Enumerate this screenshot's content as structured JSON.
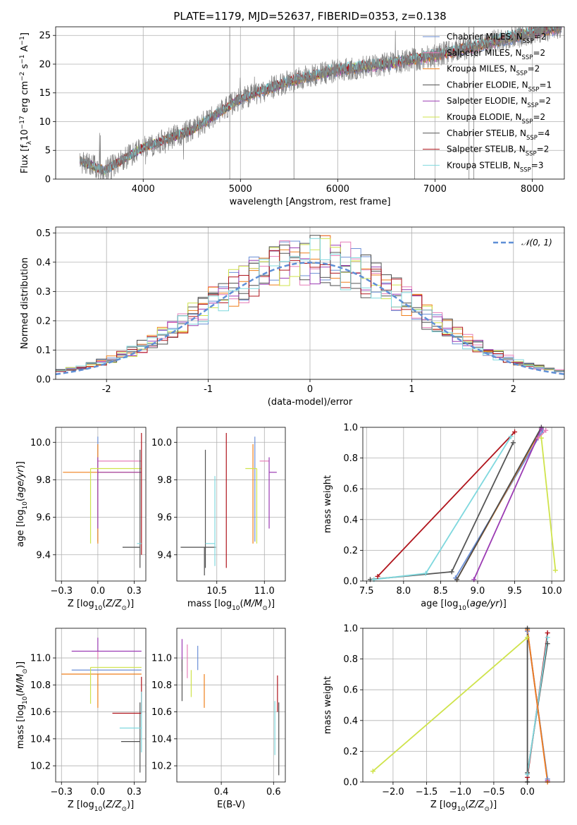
{
  "colors": {
    "Chabrier MILES": "#6b8fd6",
    "Salpeter MILES": "#e67fb8",
    "Kroupa MILES": "#ef7f1a",
    "Chabrier ELODIE": "#4d4d4d",
    "Salpeter ELODIE": "#9b3bb3",
    "Kroupa ELODIE": "#cfe34b",
    "Chabrier STELIB": "#555555",
    "Salpeter STELIB": "#b0141c",
    "Kroupa STELIB": "#7fd8de",
    "data": "#808080",
    "normal": "#5f8fd6"
  },
  "chart_data": [
    {
      "id": "spectrum",
      "type": "line",
      "title": "PLATE=1179, MJD=52637, FIBERID=0353, z=0.138",
      "xlabel": "wavelength [Angstrom, rest frame]",
      "ylabel": "Flux [f_λ10^-17 erg cm^-2 s^-1 A^-1]",
      "xlim": [
        3100,
        8330
      ],
      "ylim": [
        0,
        26.5
      ],
      "xticks": [
        4000,
        5000,
        6000,
        7000,
        8000
      ],
      "yticks": [
        0,
        5,
        10,
        15,
        20,
        25
      ],
      "data_range": [
        3350,
        8300
      ],
      "trend": {
        "x": [
          3350,
          3600,
          4000,
          4500,
          5000,
          5500,
          6000,
          6500,
          7000,
          7500,
          8000,
          8300
        ],
        "y": [
          3.2,
          1.5,
          5.5,
          8.5,
          14.0,
          17.0,
          19.0,
          20.0,
          21.5,
          23.5,
          25.5,
          26.5
        ]
      },
      "legend": [
        {
          "base": "Chabrier MILES",
          "n": "2"
        },
        {
          "base": "Salpeter MILES",
          "n": "2"
        },
        {
          "base": "Kroupa MILES",
          "n": "2"
        },
        {
          "base": "Chabrier ELODIE",
          "n": "1"
        },
        {
          "base": "Salpeter ELODIE",
          "n": "2"
        },
        {
          "base": "Kroupa ELODIE",
          "n": "2"
        },
        {
          "base": "Chabrier STELIB",
          "n": "4"
        },
        {
          "base": "Salpeter STELIB",
          "n": "2"
        },
        {
          "base": "Kroupa STELIB",
          "n": "3"
        }
      ]
    },
    {
      "id": "residuals",
      "type": "step",
      "xlabel": "(data-model)/error",
      "ylabel": "Normed distribution",
      "xlim": [
        -2.5,
        2.5
      ],
      "ylim": [
        0,
        0.52
      ],
      "xticks": [
        -2,
        -1,
        0,
        1,
        2
      ],
      "yticks": [
        0.0,
        0.1,
        0.2,
        0.3,
        0.4,
        0.5
      ],
      "legend": "𝒩(0, 1)",
      "grid": true
    },
    {
      "id": "age-vs-Z",
      "type": "errorbar",
      "xlabel": "Z [log10(Z/Z⊙)]",
      "ylabel": "age  [log10(age/yr)]",
      "xlim": [
        -0.29,
        0.33
      ],
      "ylim": [
        9.26,
        10.08
      ],
      "xticks": [
        -0.25,
        0.0,
        0.25
      ],
      "yticks": [
        9.4,
        9.6,
        9.8,
        10.0
      ],
      "points": [
        {
          "model": "Chabrier MILES",
          "x": 0.0,
          "y": 9.85,
          "xerr": [
            0.0,
            0.0
          ],
          "yerr": [
            0.38,
            0.18
          ]
        },
        {
          "model": "Salpeter MILES",
          "x": 0.05,
          "y": 9.9,
          "xerr": [
            0.05,
            0.25
          ],
          "yerr": [
            0.0,
            0.0
          ]
        },
        {
          "model": "Kroupa MILES",
          "x": 0.0,
          "y": 9.84,
          "xerr": [
            0.24,
            0.3
          ],
          "yerr": [
            0.38,
            0.15
          ]
        },
        {
          "model": "Chabrier ELODIE",
          "x": 0.29,
          "y": 9.44,
          "xerr": [
            0.12,
            0.0
          ],
          "yerr": [
            0.0,
            0.0
          ]
        },
        {
          "model": "Salpeter ELODIE",
          "x": 0.0,
          "y": 9.84,
          "xerr": [
            0.0,
            0.3
          ],
          "yerr": [
            0.3,
            0.08
          ]
        },
        {
          "model": "Kroupa ELODIE",
          "x": -0.05,
          "y": 9.86,
          "xerr": [
            0.0,
            0.35
          ],
          "yerr": [
            0.4,
            0.0
          ]
        },
        {
          "model": "Chabrier STELIB",
          "x": 0.29,
          "y": 9.7,
          "xerr": [
            0.0,
            0.0
          ],
          "yerr": [
            0.37,
            0.26
          ]
        },
        {
          "model": "Salpeter STELIB",
          "x": 0.3,
          "y": 9.7,
          "xerr": [
            0.0,
            0.0
          ],
          "yerr": [
            0.3,
            0.35
          ]
        },
        {
          "model": "Kroupa STELIB",
          "x": 0.27,
          "y": 9.46,
          "xerr": [
            0.0,
            0.03
          ],
          "yerr": [
            0.0,
            0.0
          ]
        }
      ]
    },
    {
      "id": "age-vs-mass",
      "type": "errorbar",
      "xlabel": "mass [log10(M/M⊙)]",
      "ylabel": "",
      "xlim": [
        10.08,
        11.22
      ],
      "ylim": [
        9.26,
        10.08
      ],
      "xticks": [
        10.5,
        11.0
      ],
      "yticks": [
        9.4,
        9.6,
        9.8,
        10.0
      ],
      "points": [
        {
          "model": "Chabrier MILES",
          "x": 10.9,
          "y": 9.85,
          "xerr": [
            0.0,
            0.0
          ],
          "yerr": [
            0.38,
            0.18
          ]
        },
        {
          "model": "Salpeter MILES",
          "x": 11.05,
          "y": 9.9,
          "xerr": [
            0.1,
            0.0
          ],
          "yerr": [
            0.0,
            0.0
          ]
        },
        {
          "model": "Kroupa MILES",
          "x": 10.88,
          "y": 9.84,
          "xerr": [
            0.0,
            0.0
          ],
          "yerr": [
            0.38,
            0.15
          ]
        },
        {
          "model": "Chabrier ELODIE",
          "x": 10.37,
          "y": 9.44,
          "xerr": [
            0.25,
            0.12
          ],
          "yerr": [
            0.15,
            0.0
          ]
        },
        {
          "model": "Salpeter ELODIE",
          "x": 11.05,
          "y": 9.84,
          "xerr": [
            0.0,
            0.08
          ],
          "yerr": [
            0.3,
            0.08
          ]
        },
        {
          "model": "Kroupa ELODIE",
          "x": 10.92,
          "y": 9.86,
          "xerr": [
            0.12,
            0.0
          ],
          "yerr": [
            0.4,
            0.0
          ]
        },
        {
          "model": "Chabrier STELIB",
          "x": 10.38,
          "y": 9.7,
          "xerr": [
            0.0,
            0.0
          ],
          "yerr": [
            0.37,
            0.26
          ]
        },
        {
          "model": "Salpeter STELIB",
          "x": 10.6,
          "y": 9.7,
          "xerr": [
            0.0,
            0.0
          ],
          "yerr": [
            0.37,
            0.35
          ]
        },
        {
          "model": "Kroupa STELIB",
          "x": 10.48,
          "y": 9.46,
          "xerr": [
            0.1,
            0.0
          ],
          "yerr": [
            0.12,
            0.36
          ]
        }
      ]
    },
    {
      "id": "weight-vs-age",
      "type": "line",
      "xlabel": "age  [log10(age/yr)]",
      "ylabel": "mass weight",
      "xlim": [
        7.45,
        10.17
      ],
      "ylim": [
        0,
        1
      ],
      "xticks": [
        7.5,
        8.0,
        8.5,
        9.0,
        9.5,
        10.0
      ],
      "yticks": [
        0.0,
        0.2,
        0.4,
        0.6,
        0.8,
        1.0
      ],
      "series": [
        {
          "model": "Salpeter STELIB",
          "x": [
            7.65,
            9.5
          ],
          "y": [
            0.03,
            0.97
          ]
        },
        {
          "model": "Chabrier STELIB",
          "x": [
            7.55,
            8.65,
            9.48
          ],
          "y": [
            0.01,
            0.06,
            0.9
          ]
        },
        {
          "model": "Kroupa STELIB",
          "x": [
            7.6,
            8.3,
            9.45
          ],
          "y": [
            0.01,
            0.05,
            0.94
          ]
        },
        {
          "model": "Chabrier MILES",
          "x": [
            8.7,
            9.88
          ],
          "y": [
            0.02,
            0.98
          ]
        },
        {
          "model": "Kroupa MILES",
          "x": [
            8.72,
            9.86
          ],
          "y": [
            0.01,
            0.99
          ]
        },
        {
          "model": "Chabrier ELODIE",
          "x": [
            8.72,
            9.86
          ],
          "y": [
            0.01,
            1.0
          ]
        },
        {
          "model": "Salpeter ELODIE",
          "x": [
            8.95,
            9.86
          ],
          "y": [
            0.01,
            0.99
          ]
        },
        {
          "model": "Salpeter MILES",
          "x": [
            9.82,
            9.92
          ],
          "y": [
            0.93,
            0.98
          ]
        },
        {
          "model": "Kroupa ELODIE",
          "x": [
            9.86,
            10.05
          ],
          "y": [
            0.93,
            0.07
          ]
        }
      ]
    },
    {
      "id": "mass-vs-Z",
      "type": "errorbar",
      "xlabel": "Z [log10(Z/Z⊙)]",
      "ylabel": "mass [log10(M/M⊙)]",
      "xlim": [
        -0.29,
        0.33
      ],
      "ylim": [
        10.08,
        11.22
      ],
      "xticks": [
        -0.25,
        0.0,
        0.25
      ],
      "yticks": [
        10.2,
        10.4,
        10.6,
        10.8,
        11.0
      ],
      "points": [
        {
          "model": "Chabrier MILES",
          "x": 0.0,
          "y": 10.91,
          "xerr": [
            0.18,
            0.3
          ],
          "yerr": [
            0.0,
            0.0
          ]
        },
        {
          "model": "Salpeter MILES",
          "x": 0.0,
          "y": 11.05,
          "xerr": [
            0.0,
            0.0
          ],
          "yerr": [
            0.06,
            0.0
          ]
        },
        {
          "model": "Kroupa MILES",
          "x": 0.0,
          "y": 10.88,
          "xerr": [
            0.25,
            0.3
          ],
          "yerr": [
            0.25,
            0.0
          ]
        },
        {
          "model": "Chabrier ELODIE",
          "x": 0.29,
          "y": 10.38,
          "xerr": [
            0.13,
            0.0
          ],
          "yerr": [
            0.0,
            0.0
          ]
        },
        {
          "model": "Salpeter ELODIE",
          "x": 0.0,
          "y": 11.05,
          "xerr": [
            0.18,
            0.3
          ],
          "yerr": [
            0.0,
            0.1
          ]
        },
        {
          "model": "Kroupa ELODIE",
          "x": -0.05,
          "y": 10.93,
          "xerr": [
            0.0,
            0.35
          ],
          "yerr": [
            0.27,
            0.0
          ]
        },
        {
          "model": "Chabrier STELIB",
          "x": 0.29,
          "y": 10.4,
          "xerr": [
            0.0,
            0.0
          ],
          "yerr": [
            0.25,
            0.27
          ]
        },
        {
          "model": "Salpeter STELIB",
          "x": 0.3,
          "y": 10.59,
          "xerr": [
            0.2,
            0.0
          ],
          "yerr": [
            0.0,
            0.27
          ]
        },
        {
          "model": "Kroupa STELIB",
          "x": 0.3,
          "y": 10.48,
          "xerr": [
            0.15,
            0.0
          ],
          "yerr": [
            0.18,
            0.27
          ]
        }
      ]
    },
    {
      "id": "mass-vs-ebv",
      "type": "errorbar",
      "xlabel": "E(B-V)",
      "ylabel": "",
      "xlim": [
        0.23,
        0.645
      ],
      "ylim": [
        10.08,
        11.22
      ],
      "xticks": [
        0.4,
        0.6
      ],
      "yticks": [
        10.2,
        10.4,
        10.6,
        10.8,
        11.0
      ],
      "points": [
        {
          "model": "Chabrier MILES",
          "x": 0.31,
          "y": 10.91,
          "xerr": [
            0.0,
            0.0
          ],
          "yerr": [
            0.0,
            0.18
          ]
        },
        {
          "model": "Salpeter MILES",
          "x": 0.27,
          "y": 10.95,
          "xerr": [
            0.0,
            0.0
          ],
          "yerr": [
            0.1,
            0.15
          ]
        },
        {
          "model": "Kroupa MILES",
          "x": 0.335,
          "y": 10.78,
          "xerr": [
            0.0,
            0.0
          ],
          "yerr": [
            0.15,
            0.1
          ]
        },
        {
          "model": "Chabrier ELODIE",
          "x": 0.62,
          "y": 10.4,
          "xerr": [
            0.0,
            0.0
          ],
          "yerr": [
            0.27,
            0.27
          ]
        },
        {
          "model": "Salpeter ELODIE",
          "x": 0.25,
          "y": 11.0,
          "xerr": [
            0.0,
            0.0
          ],
          "yerr": [
            0.1,
            0.14
          ]
        },
        {
          "model": "Kroupa ELODIE",
          "x": 0.285,
          "y": 10.83,
          "xerr": [
            0.0,
            0.0
          ],
          "yerr": [
            0.12,
            0.08
          ]
        },
        {
          "model": "Chabrier STELIB",
          "x": 0.25,
          "y": 10.84,
          "xerr": [
            0.0,
            0.0
          ],
          "yerr": [
            0.16,
            0.15
          ]
        },
        {
          "model": "Salpeter STELIB",
          "x": 0.615,
          "y": 10.6,
          "xerr": [
            0.0,
            0.0
          ],
          "yerr": [
            0.0,
            0.27
          ]
        },
        {
          "model": "Kroupa STELIB",
          "x": 0.605,
          "y": 10.48,
          "xerr": [
            0.0,
            0.0
          ],
          "yerr": [
            0.2,
            0.2
          ]
        }
      ]
    },
    {
      "id": "weight-vs-Z",
      "type": "line",
      "xlabel": "Z [log10(Z/Z⊙)]",
      "ylabel": "mass weight",
      "xlim": [
        -2.45,
        0.55
      ],
      "ylim": [
        0,
        1
      ],
      "xticks": [
        -2.0,
        -1.5,
        -1.0,
        -0.5,
        0.0
      ],
      "yticks": [
        0.0,
        0.2,
        0.4,
        0.6,
        0.8,
        1.0
      ],
      "series": [
        {
          "model": "Kroupa ELODIE",
          "x": [
            -2.3,
            0.0
          ],
          "y": [
            0.07,
            0.94
          ]
        },
        {
          "model": "Salpeter STELIB",
          "x": [
            0.0,
            0.3
          ],
          "y": [
            0.03,
            0.97
          ]
        },
        {
          "model": "Chabrier STELIB",
          "x": [
            0.0,
            0.3
          ],
          "y": [
            0.06,
            0.9
          ]
        },
        {
          "model": "Kroupa STELIB",
          "x": [
            0.0,
            0.3
          ],
          "y": [
            0.05,
            0.94
          ]
        },
        {
          "model": "Salpeter MILES",
          "x": [
            0.0,
            0.3
          ],
          "y": [
            0.98,
            0.0
          ]
        },
        {
          "model": "Salpeter ELODIE",
          "x": [
            0.0,
            0.3
          ],
          "y": [
            0.99,
            0.01
          ]
        },
        {
          "model": "Chabrier MILES",
          "x": [
            0.0,
            0.3
          ],
          "y": [
            0.98,
            0.02
          ]
        },
        {
          "model": "Kroupa MILES",
          "x": [
            0.0,
            0.3
          ],
          "y": [
            0.99,
            0.0
          ]
        },
        {
          "model": "Chabrier ELODIE",
          "x": [
            0.0,
            0.0
          ],
          "y": [
            0.0,
            1.0
          ]
        }
      ]
    }
  ]
}
